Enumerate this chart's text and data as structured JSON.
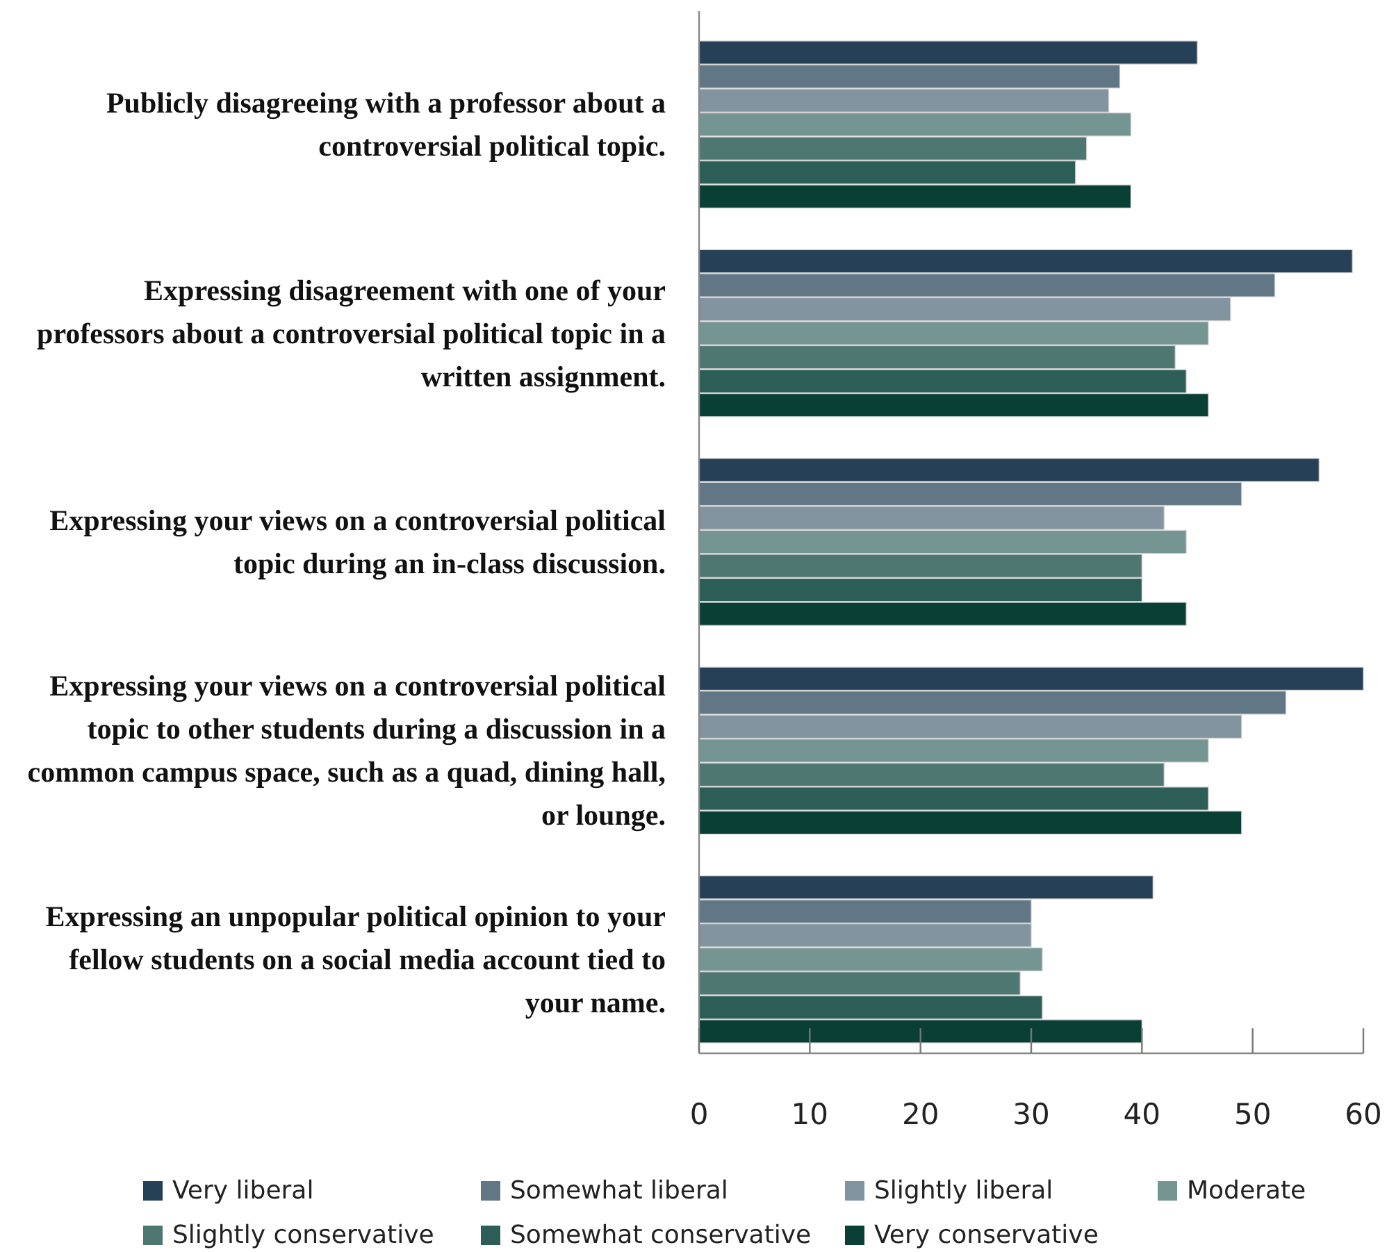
{
  "chart_data": {
    "type": "bar",
    "orientation": "horizontal",
    "categories": [
      "Publicly disagreeing with a professor about a controversial political topic.",
      "Expressing disagreement with one of your professors about a controversial political topic in a written assignment.",
      "Expressing your views on a controversial political topic during an in-class discussion.",
      "Expressing your views on a controversial political topic to other students during a discussion in a common campus space, such as a quad, dining hall, or lounge.",
      "Expressing an unpopular political opinion to your fellow students on a social media account tied to your name."
    ],
    "series": [
      {
        "name": "Very liberal",
        "color": "#264157",
        "values": [
          45,
          59,
          56,
          60,
          41
        ]
      },
      {
        "name": "Somewhat liberal",
        "color": "#627786",
        "values": [
          38,
          52,
          49,
          53,
          30
        ]
      },
      {
        "name": "Slightly liberal",
        "color": "#8394a1",
        "values": [
          37,
          48,
          42,
          49,
          30
        ]
      },
      {
        "name": "Moderate",
        "color": "#759593",
        "values": [
          39,
          46,
          44,
          46,
          31
        ]
      },
      {
        "name": "Slightly conservative",
        "color": "#4f7771",
        "values": [
          35,
          43,
          40,
          42,
          29
        ]
      },
      {
        "name": "Somewhat conservative",
        "color": "#2c5d57",
        "values": [
          34,
          44,
          40,
          46,
          31
        ]
      },
      {
        "name": "Very conservative",
        "color": "#0a3f36",
        "values": [
          39,
          46,
          44,
          49,
          40
        ]
      }
    ],
    "xlim": [
      0,
      60
    ],
    "xticks": [
      0,
      10,
      20,
      30,
      40,
      50,
      60
    ],
    "grid": false,
    "legend": "bottom"
  }
}
